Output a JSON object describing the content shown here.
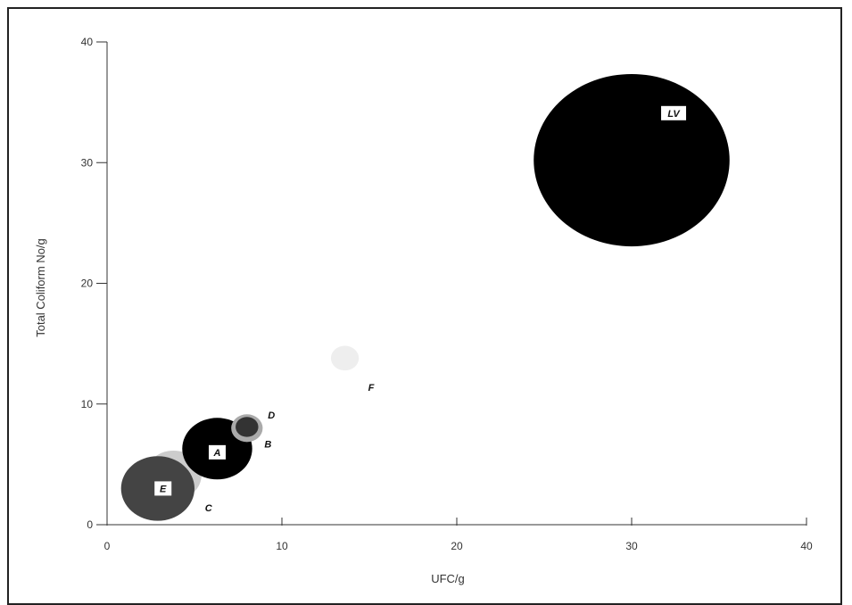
{
  "chart_data": {
    "type": "bubble",
    "title": "",
    "xlabel": "UFC/g",
    "ylabel": "Total Coliform No/g",
    "xlim": [
      0,
      40
    ],
    "ylim": [
      0,
      40
    ],
    "xticks": [
      0,
      10,
      20,
      30,
      40
    ],
    "yticks": [
      0,
      10,
      20,
      30,
      40
    ],
    "grid": false,
    "points": [
      {
        "label": "LV",
        "x": 30,
        "y": 30.2,
        "r": 5.6,
        "color": "#000000",
        "label_style": "boxed",
        "label_dx": 2.4,
        "label_dy": 3.9
      },
      {
        "label": "F",
        "x": 13.6,
        "y": 13.8,
        "r": 0.8,
        "color": "#eeeeee",
        "label_style": "plain",
        "label_dx": 1.5,
        "label_dy": -2.4
      },
      {
        "label": "C",
        "x": 3.8,
        "y": 4.1,
        "r": 1.6,
        "color": "#cccccc",
        "label_style": "plain",
        "label_dx": 2.0,
        "label_dy": -2.7
      },
      {
        "label": "E",
        "x": 2.9,
        "y": 3.0,
        "r": 2.1,
        "color": "#444444",
        "label_style": "boxed",
        "label_dx": 0.3,
        "label_dy": 0.0
      },
      {
        "label": "A",
        "x": 6.3,
        "y": 6.3,
        "r": 2.0,
        "color": "#000000",
        "label_style": "boxed",
        "label_dx": 0.0,
        "label_dy": -0.3
      },
      {
        "label": "B",
        "x": 8.0,
        "y": 8.0,
        "r": 0.9,
        "color": "#aaaaaa",
        "label_style": "plain",
        "label_dx": 1.2,
        "label_dy": -1.3
      },
      {
        "label": "D",
        "x": 8.0,
        "y": 8.1,
        "r": 0.65,
        "color": "#333333",
        "label_style": "plain",
        "label_dx": 1.4,
        "label_dy": 1.0
      }
    ]
  }
}
